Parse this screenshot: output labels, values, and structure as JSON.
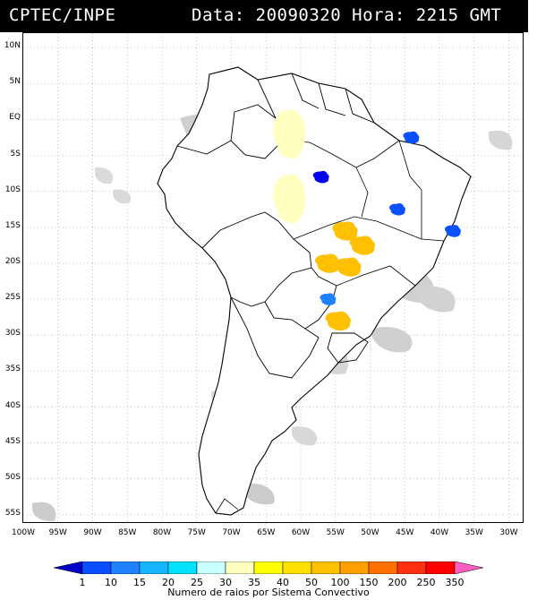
{
  "header": {
    "source": "CPTEC/INPE",
    "date_label": "Data:",
    "date_value": "20090320",
    "hour_label": "Hora:",
    "hour_value": "2215",
    "tz": "GMT"
  },
  "map": {
    "lat_labels": [
      "10N",
      "5N",
      "EQ",
      "5S",
      "10S",
      "15S",
      "20S",
      "25S",
      "30S",
      "35S",
      "40S",
      "45S",
      "50S",
      "55S"
    ],
    "lon_labels": [
      "100W",
      "95W",
      "90W",
      "85W",
      "80W",
      "75W",
      "70W",
      "65W",
      "60W",
      "55W",
      "50W",
      "45W",
      "40W",
      "35W",
      "30W"
    ],
    "lon_range": [
      -100,
      -28
    ],
    "lat_range": [
      -56,
      12
    ],
    "colors": {
      "land_border": "#000000",
      "cloud_gray": "#c8c8c8",
      "grid": "#9a9a9a"
    },
    "convective_systems": [
      {
        "lon": -53.5,
        "lat": -15.5,
        "class": "70",
        "color": "#ffc000"
      },
      {
        "lon": -56.0,
        "lat": -20.0,
        "class": "70",
        "color": "#ffc000"
      },
      {
        "lon": -53.0,
        "lat": -20.5,
        "class": "70",
        "color": "#ffc000"
      },
      {
        "lon": -51.0,
        "lat": -17.5,
        "class": "70",
        "color": "#ffc000"
      },
      {
        "lon": -54.5,
        "lat": -28.0,
        "class": "70",
        "color": "#ffc000"
      },
      {
        "lon": -57.0,
        "lat": -8.0,
        "class": "1",
        "color": "#0000f0"
      },
      {
        "lon": -61.0,
        "lat": -9.0,
        "class": "1",
        "color": "#0000f0"
      },
      {
        "lon": -44.0,
        "lat": -2.5,
        "class": "10",
        "color": "#0a50ff"
      },
      {
        "lon": -46.0,
        "lat": -12.5,
        "class": "10",
        "color": "#0a50ff"
      },
      {
        "lon": -38.0,
        "lat": -15.5,
        "class": "10",
        "color": "#0a50ff"
      },
      {
        "lon": -56.0,
        "lat": -25.0,
        "class": "15",
        "color": "#1e82ff"
      },
      {
        "lon": -61.5,
        "lat": -2.0,
        "class": "35",
        "color": "#ffffc0"
      },
      {
        "lon": -61.5,
        "lat": -11.0,
        "class": "35",
        "color": "#ffffc0"
      }
    ]
  },
  "legend": {
    "title": "Numero de raios por Sistema Convectivo",
    "ticks": [
      "1",
      "10",
      "15",
      "20",
      "25",
      "30",
      "35",
      "40",
      "50",
      "100",
      "150",
      "200",
      "250",
      "350"
    ],
    "colors": [
      "#0000c8",
      "#0a50ff",
      "#1e82ff",
      "#14b4ff",
      "#00e0ff",
      "#c8ffff",
      "#ffffc0",
      "#ffff00",
      "#ffe000",
      "#ffc000",
      "#ffa000",
      "#ff7000",
      "#ff3010",
      "#ff0000",
      "#ff60c0"
    ]
  }
}
